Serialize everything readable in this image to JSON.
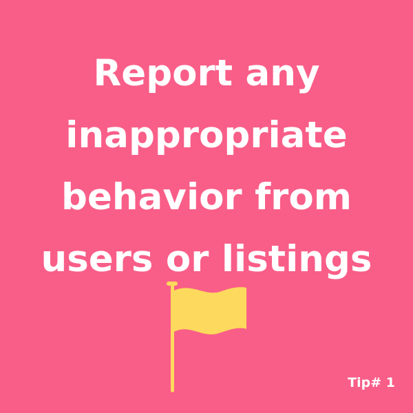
{
  "headline": {
    "lines": [
      "Report any",
      "inappropriate",
      "behavior from",
      "users or listings"
    ]
  },
  "flag": {
    "icon": "flag-icon",
    "color": "#fdd95d"
  },
  "tip_label": "Tip# 1",
  "colors": {
    "background": "#f95e88",
    "text": "#ffffff"
  }
}
